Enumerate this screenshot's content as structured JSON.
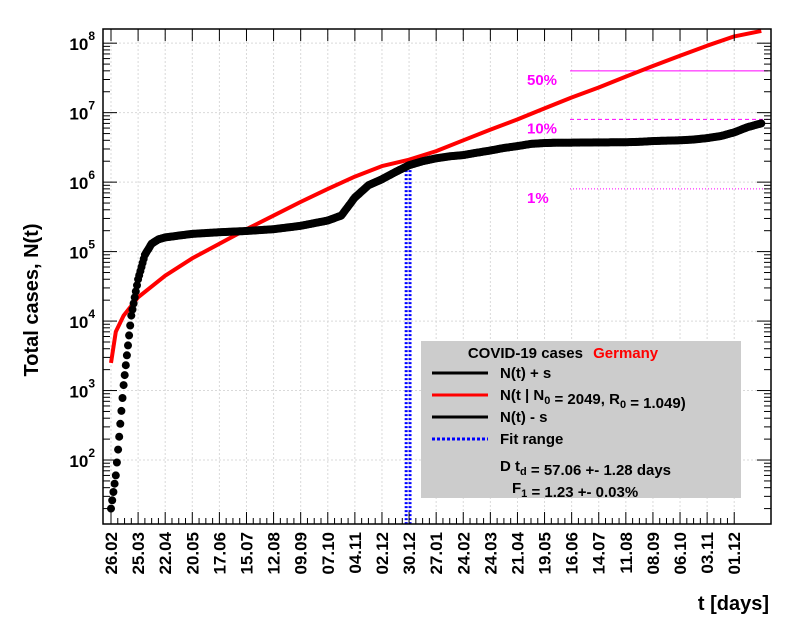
{
  "chart_data": {
    "type": "scatter",
    "title": "",
    "xlabel": "t [days]",
    "ylabel": "Total cases, N(t)",
    "y_scale": "log",
    "ylim": [
      12,
      160000000
    ],
    "grid": true,
    "x_tick_labels": [
      "26.02",
      "25.03",
      "22.04",
      "20.05",
      "17.06",
      "15.07",
      "12.08",
      "09.09",
      "07.10",
      "04.11",
      "02.12",
      "30.12",
      "27.01",
      "24.02",
      "24.03",
      "21.04",
      "19.05",
      "16.06",
      "14.07",
      "11.08",
      "08.09",
      "06.10",
      "03.11",
      "01.12"
    ],
    "y_tick_labels": [
      {
        "value": 100,
        "base": "10",
        "exp": "2"
      },
      {
        "value": 1000,
        "base": "10",
        "exp": "3"
      },
      {
        "value": 10000,
        "base": "10",
        "exp": "4"
      },
      {
        "value": 100000,
        "base": "10",
        "exp": "5"
      },
      {
        "value": 1000000,
        "base": "10",
        "exp": "6"
      },
      {
        "value": 10000000,
        "base": "10",
        "exp": "7"
      },
      {
        "value": 100000000,
        "base": "10",
        "exp": "8"
      }
    ],
    "series": [
      {
        "name": "N(t) + s",
        "color": "#000000",
        "kind": "points",
        "x": [
          "26.02",
          "02.03",
          "10.03",
          "18.03",
          "25.03",
          "01.04",
          "08.04",
          "15.04",
          "22.04",
          "06.05",
          "20.05",
          "17.06",
          "15.07",
          "12.08",
          "09.09",
          "07.10",
          "21.10",
          "04.11",
          "18.11",
          "02.12",
          "16.12",
          "30.12",
          "13.01",
          "27.01",
          "10.02",
          "24.02",
          "10.03",
          "24.03",
          "07.04",
          "21.04",
          "05.05",
          "19.05",
          "02.06",
          "16.06",
          "30.06",
          "14.07",
          "28.07",
          "11.08",
          "25.08",
          "08.09",
          "22.09",
          "06.10",
          "20.10",
          "03.11",
          "17.11",
          "01.12",
          "15.12",
          "29.12"
        ],
        "y": [
          20,
          60,
          1200,
          12000,
          40000,
          90000,
          130000,
          150000,
          160000,
          170000,
          180000,
          190000,
          198000,
          210000,
          235000,
          280000,
          330000,
          600000,
          900000,
          1100000,
          1400000,
          1750000,
          2000000,
          2200000,
          2350000,
          2450000,
          2650000,
          2850000,
          3100000,
          3300000,
          3550000,
          3650000,
          3700000,
          3700000,
          3720000,
          3730000,
          3740000,
          3750000,
          3800000,
          3900000,
          3950000,
          4000000,
          4100000,
          4300000,
          4600000,
          5200000,
          6200000,
          7000000
        ]
      },
      {
        "name": "N(t | N0 = 2049, R0 = 1.049)",
        "color": "#ff0000",
        "kind": "line",
        "x": [
          "26.02",
          "02.03",
          "10.03",
          "25.03",
          "22.04",
          "20.05",
          "17.06",
          "15.07",
          "12.08",
          "09.09",
          "07.10",
          "04.11",
          "02.12",
          "30.12",
          "27.01",
          "24.02",
          "24.03",
          "21.04",
          "19.05",
          "16.06",
          "14.07",
          "11.08",
          "08.09",
          "06.10",
          "03.11",
          "01.12",
          "29.12"
        ],
        "y": [
          2500,
          7000,
          12000,
          22000,
          45000,
          80000,
          130000,
          210000,
          330000,
          520000,
          800000,
          1200000,
          1700000,
          2100000,
          2800000,
          4000000,
          5700000,
          8000000,
          11500000,
          16500000,
          23000000,
          33000000,
          47000000,
          66000000,
          92000000,
          125000000,
          150000000
        ]
      },
      {
        "name": "Fit range",
        "color": "#0000ff",
        "kind": "vertical-dotted",
        "x": [
          "27.12",
          "31.12"
        ]
      }
    ],
    "thresholds": [
      {
        "label": "50%",
        "value": 40000000,
        "style": "solid"
      },
      {
        "label": "10%",
        "value": 8000000,
        "style": "dashed"
      },
      {
        "label": "1%",
        "value": 800000,
        "style": "dotted"
      }
    ],
    "legend": {
      "placement": "bottom-right",
      "title": "COVID-19 cases",
      "country": "Germany",
      "entries": [
        {
          "label": "N(t) + s",
          "color": "#000000",
          "style": "solid"
        },
        {
          "label": "N(t | N_0 = 2049, R_0 =  1.049)",
          "color": "#ff0000",
          "style": "solid"
        },
        {
          "label": "N(t) - s",
          "color": "#000000",
          "style": "solid"
        },
        {
          "label": "Fit range",
          "color": "#0000ff",
          "style": "dotted"
        }
      ],
      "doubling_time": "D t_d = 57.06 +- 1.28 days",
      "growth_rate": "F_1 =  1.23 +- 0.03%"
    },
    "colors": {
      "data": "#000000",
      "fit": "#ff0000",
      "fit_range": "#0000ff",
      "threshold": "#ff00ff",
      "legend_bg": "#cccccc",
      "country": "#ff0000"
    }
  }
}
